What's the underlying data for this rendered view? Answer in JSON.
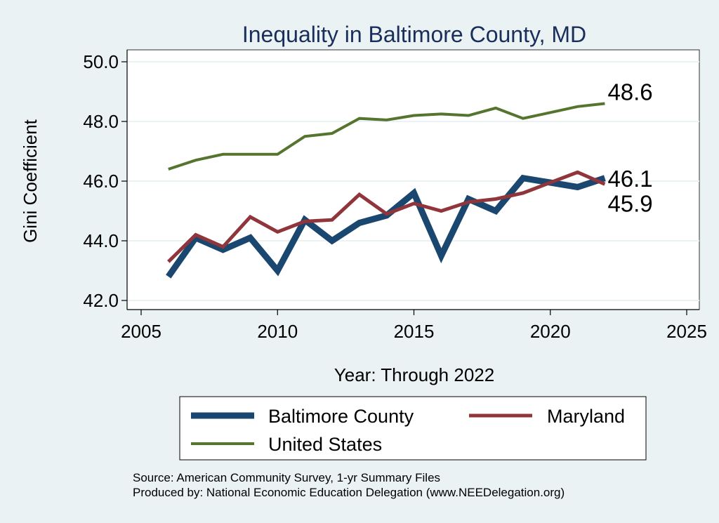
{
  "chart_data": {
    "type": "line",
    "title": "Inequality in Baltimore County, MD",
    "xlabel": "Year: Through 2022",
    "ylabel": "Gini Coefficient",
    "xlim": [
      2005,
      2025
    ],
    "ylim": [
      41.9,
      50.3
    ],
    "xticks": [
      2005,
      2010,
      2015,
      2020,
      2025
    ],
    "yticks": [
      42.0,
      44.0,
      46.0,
      48.0,
      50.0
    ],
    "ytick_labels": [
      "42.0",
      "44.0",
      "46.0",
      "48.0",
      "50.0"
    ],
    "grid": true,
    "legend_position": "bottom",
    "x": [
      2006,
      2007,
      2008,
      2009,
      2010,
      2011,
      2012,
      2013,
      2014,
      2015,
      2016,
      2017,
      2018,
      2019,
      2020,
      2021,
      2022
    ],
    "series": [
      {
        "name": "Baltimore County",
        "color": "#1a476f",
        "values": [
          42.8,
          44.1,
          43.7,
          44.1,
          43.0,
          44.7,
          44.0,
          44.6,
          44.85,
          45.6,
          43.5,
          45.4,
          45.0,
          46.1,
          45.95,
          45.8,
          46.1
        ],
        "end_label": "46.1"
      },
      {
        "name": "Maryland",
        "color": "#90353b",
        "values": [
          43.3,
          44.2,
          43.8,
          44.8,
          44.3,
          44.65,
          44.7,
          45.55,
          44.9,
          45.25,
          45.0,
          45.3,
          45.4,
          45.6,
          45.95,
          46.3,
          45.9
        ],
        "end_label": "45.9"
      },
      {
        "name": "United States",
        "color": "#55752f",
        "values": [
          46.4,
          46.7,
          46.9,
          46.9,
          46.9,
          47.5,
          47.6,
          48.1,
          48.05,
          48.2,
          48.25,
          48.2,
          48.45,
          48.1,
          48.3,
          48.5,
          48.6
        ],
        "end_label": "48.6"
      }
    ],
    "notes": [
      "Source: American Community Survey, 1-yr Summary Files",
      "Produced by: National Economic Education Delegation (www.NEEDelegation.org)"
    ]
  }
}
